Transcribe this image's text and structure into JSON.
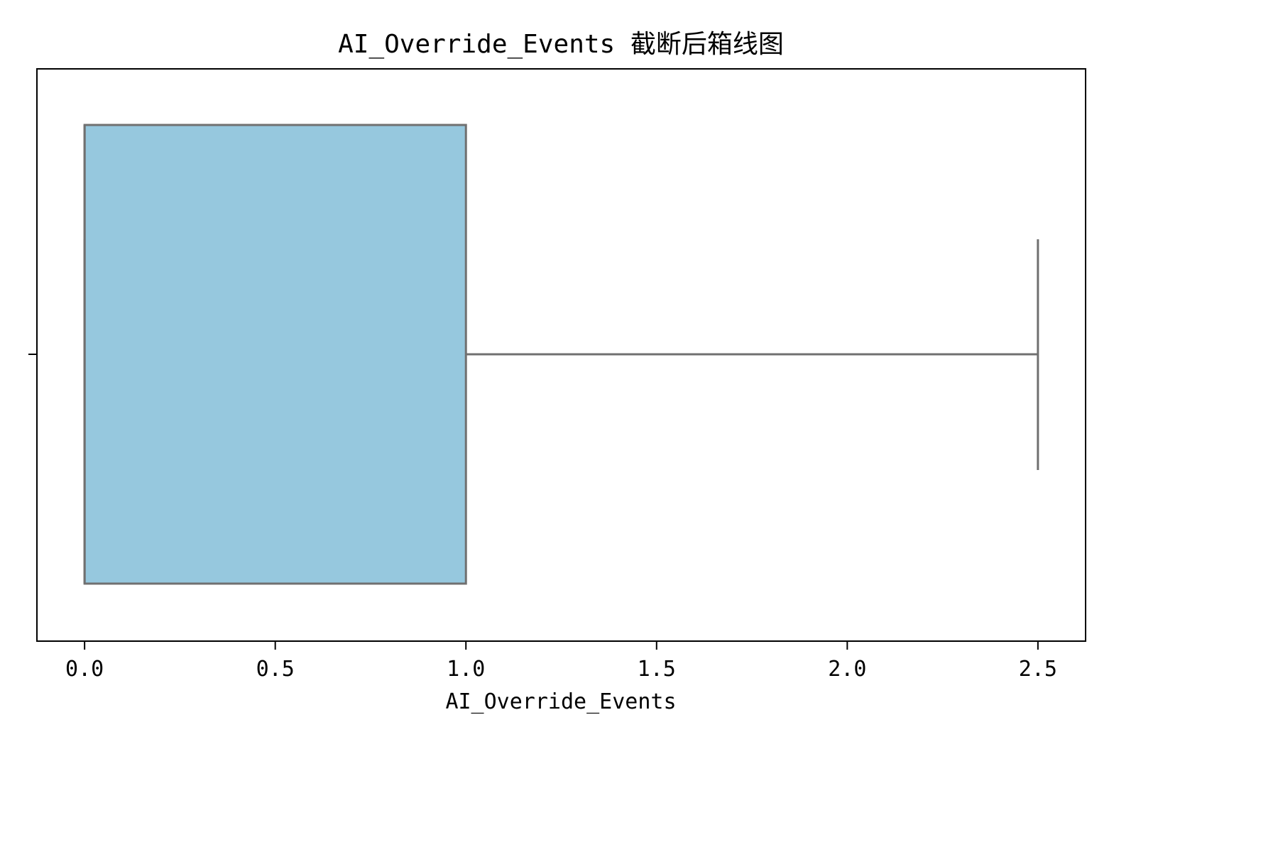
{
  "chart_data": {
    "type": "box",
    "title": "AI_Override_Events 截断后箱线图",
    "xlabel": "AI_Override_Events",
    "ylabel": "",
    "orientation": "horizontal",
    "xlim": [
      -0.125,
      2.625
    ],
    "xticks": [
      0.0,
      0.5,
      1.0,
      1.5,
      2.0,
      2.5
    ],
    "xtick_labels": [
      "0.0",
      "0.5",
      "1.0",
      "1.5",
      "2.0",
      "2.5"
    ],
    "grid": false,
    "box": {
      "q1": 0.0,
      "median": 0.0,
      "q3": 1.0,
      "whisker_low": 0.0,
      "whisker_high": 2.5
    },
    "colors": {
      "box_fill": "#96c8de",
      "box_edge": "#707070",
      "axes": "#000000"
    }
  }
}
